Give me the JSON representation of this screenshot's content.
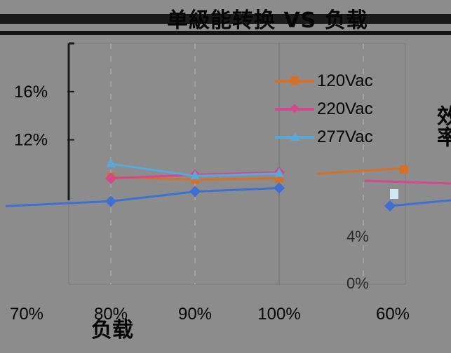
{
  "chart_data": {
    "type": "line",
    "title": "单級能转换 VS 负载",
    "xlabel": "负载",
    "ylabel": "效率",
    "categories": [
      "70%",
      "80%",
      "90%",
      "100%"
    ],
    "y_ticks": [
      "16%",
      "12%"
    ],
    "y_ticks_right": [
      "4%",
      "0%"
    ],
    "x_ticks_right": [
      "60%"
    ],
    "ylim": [
      0,
      20
    ],
    "grid": true,
    "legend_position": "top-right",
    "series": [
      {
        "name": "120Vac",
        "color": "#d4702a",
        "marker": "square",
        "values": [
          null,
          8.9,
          8.7,
          8.8
        ]
      },
      {
        "name": "220Vac",
        "color": "#d2488e",
        "marker": "diamond",
        "values": [
          null,
          8.8,
          9.1,
          9.3
        ]
      },
      {
        "name": "277Vac",
        "color": "#58a8d8",
        "marker": "triangle",
        "values": [
          null,
          10.0,
          9.0,
          9.2
        ]
      },
      {
        "name": "",
        "color": "#3f6fd0",
        "marker": "diamond",
        "values": [
          null,
          6.9,
          7.7,
          8.0
        ]
      }
    ]
  }
}
